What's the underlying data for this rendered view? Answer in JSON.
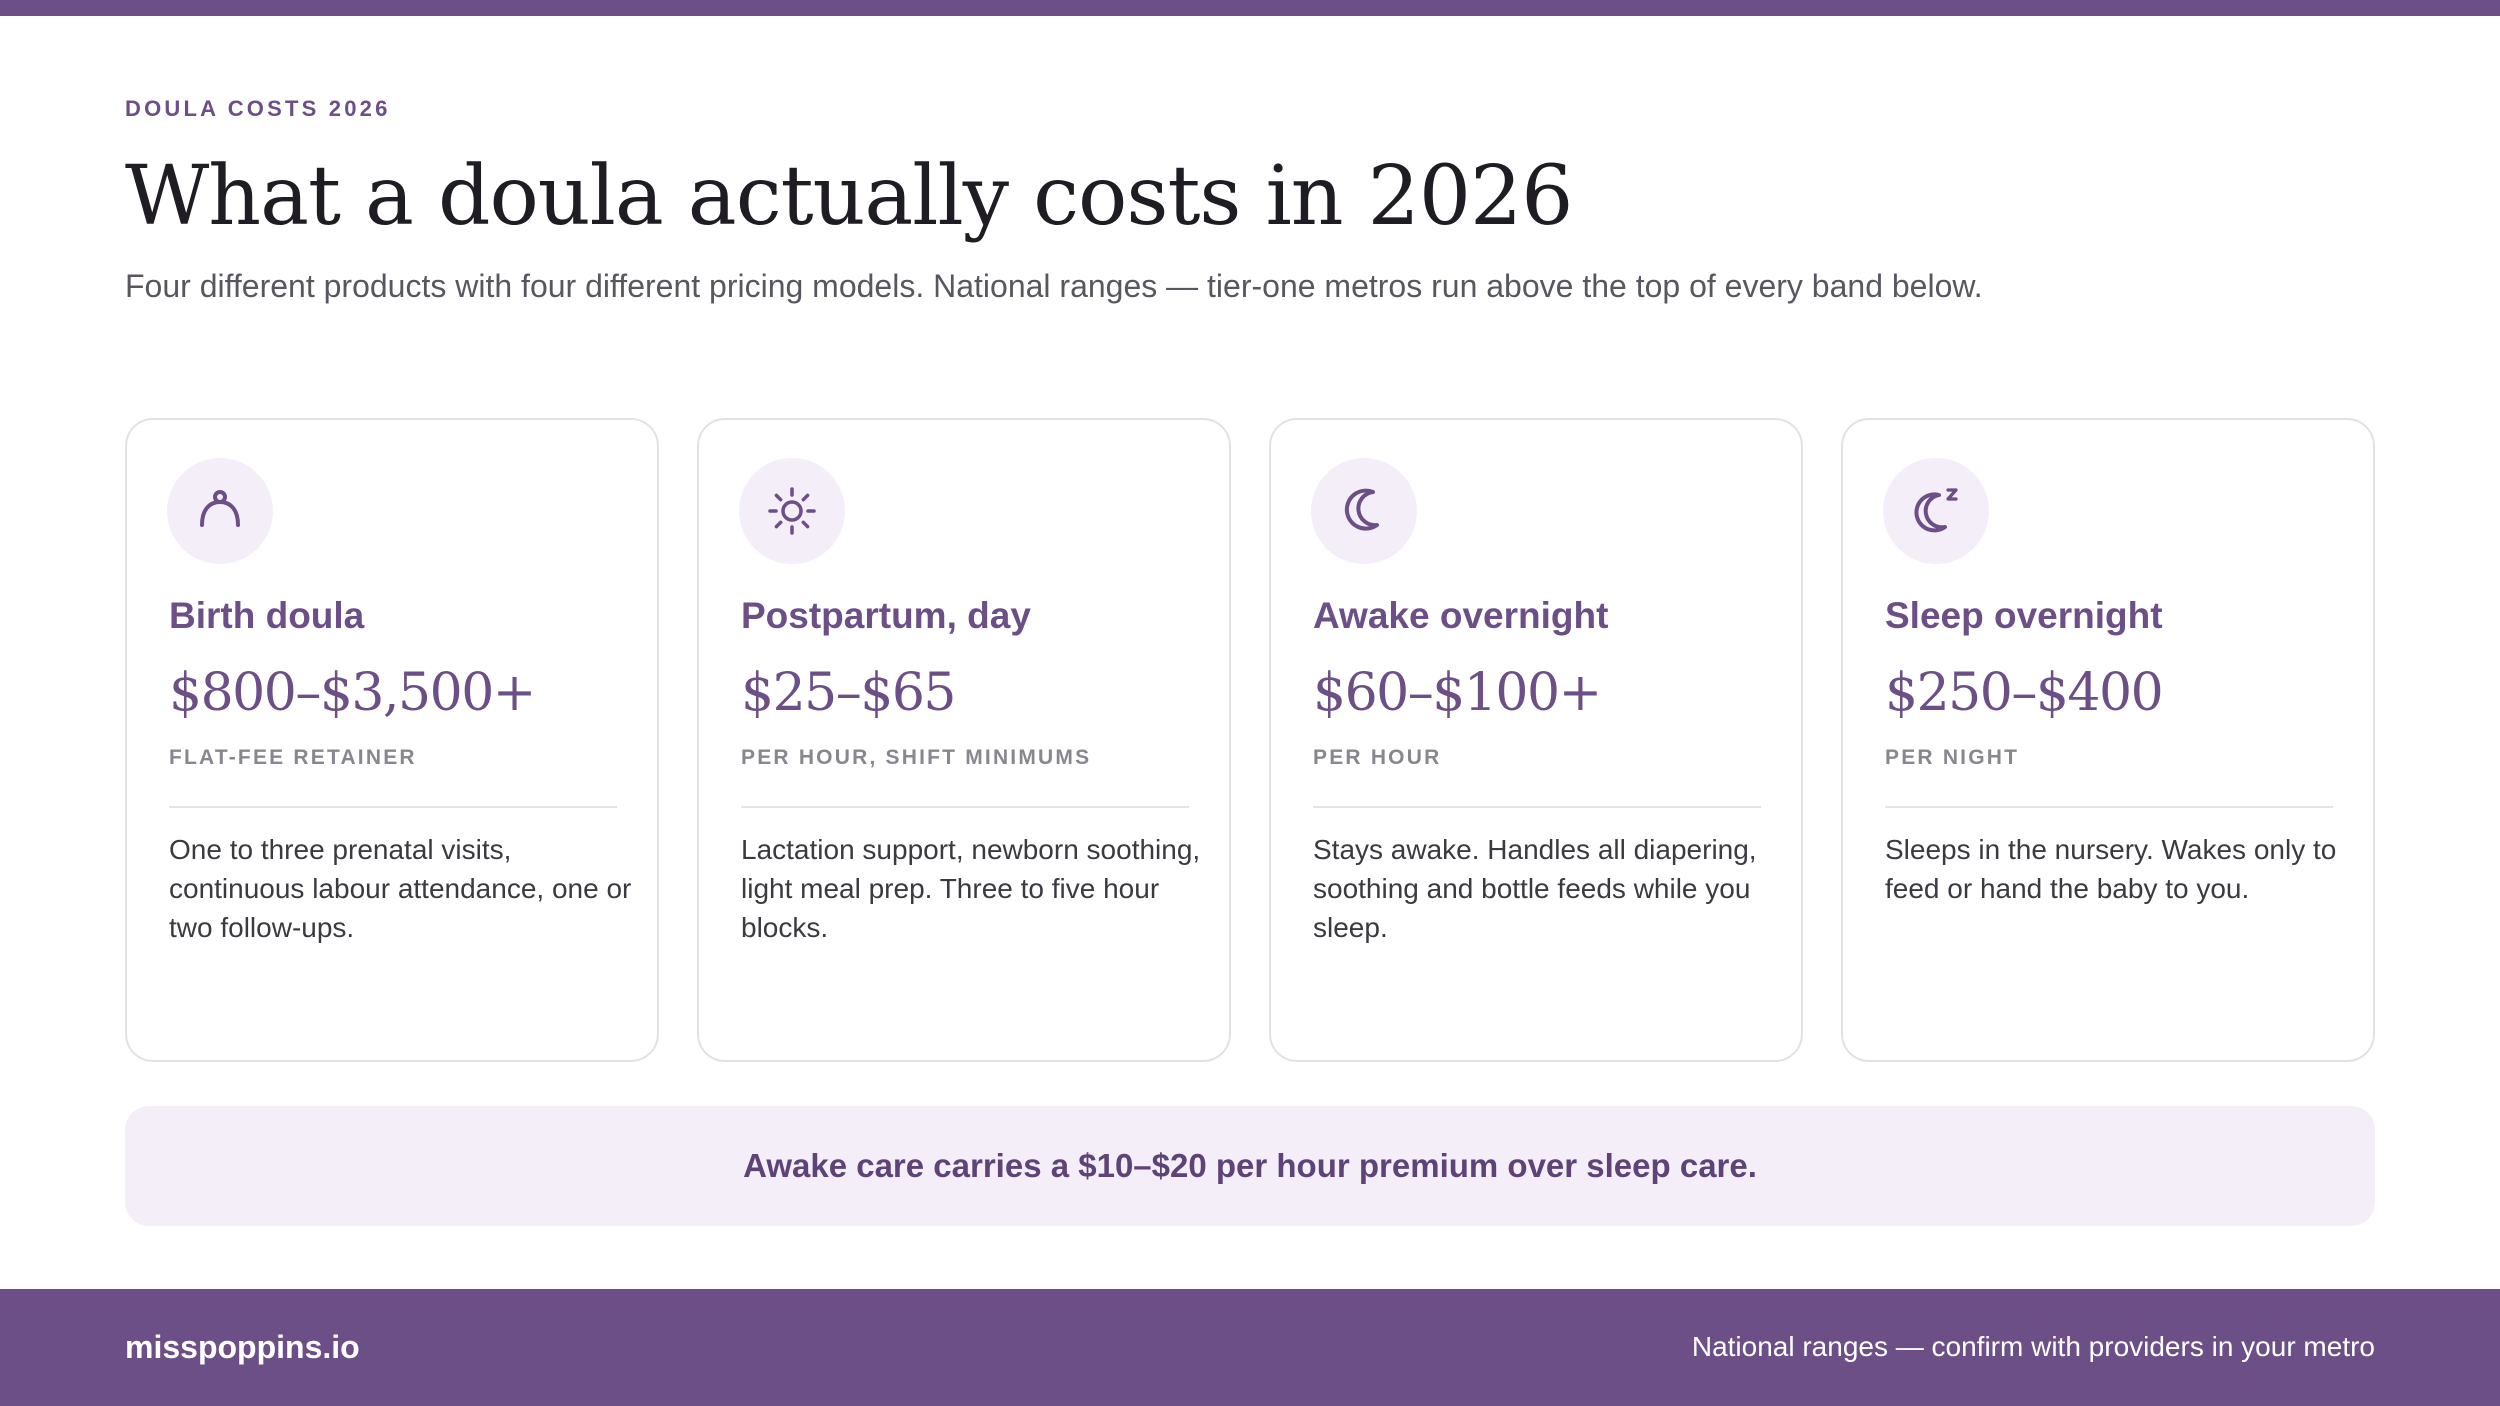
{
  "header": {
    "eyebrow": "DOULA COSTS 2026",
    "title": "What a doula actually costs in 2026",
    "subtitle": "Four different products with four different pricing models. National ranges — tier-one metros run above the top of every band below."
  },
  "colors": {
    "accent": "#6b4f86",
    "icon_bg": "#f3eef8",
    "note_bg": "#f3eef8",
    "card_border": "#e3e0e8",
    "muted_label": "#8a8690"
  },
  "cards": [
    {
      "icon": "person-icon",
      "title": "Birth doula",
      "price": "$800–$3,500+",
      "unit": "FLAT-FEE RETAINER",
      "description": "One to three prenatal visits, continuous labour attendance, one or two follow-ups."
    },
    {
      "icon": "sun-icon",
      "title": "Postpartum, day",
      "price": "$25–$65",
      "unit": "PER HOUR, SHIFT MINIMUMS",
      "description": "Lactation support, newborn soothing, light meal prep. Three to five hour blocks."
    },
    {
      "icon": "moon-icon",
      "title": "Awake overnight",
      "price": "$60–$100+",
      "unit": "PER HOUR",
      "description": "Stays awake. Handles all diapering, soothing and bottle feeds while you sleep."
    },
    {
      "icon": "moon-sleep-icon",
      "title": "Sleep overnight",
      "price": "$250–$400",
      "unit": "PER NIGHT",
      "description": "Sleeps in the nursery. Wakes only to feed or hand the baby to you."
    }
  ],
  "note": "Awake care carries a $10–$20 per hour premium over sleep care.",
  "footer": {
    "brand": "misspoppins.io",
    "note": "National ranges — confirm with providers in your metro"
  }
}
